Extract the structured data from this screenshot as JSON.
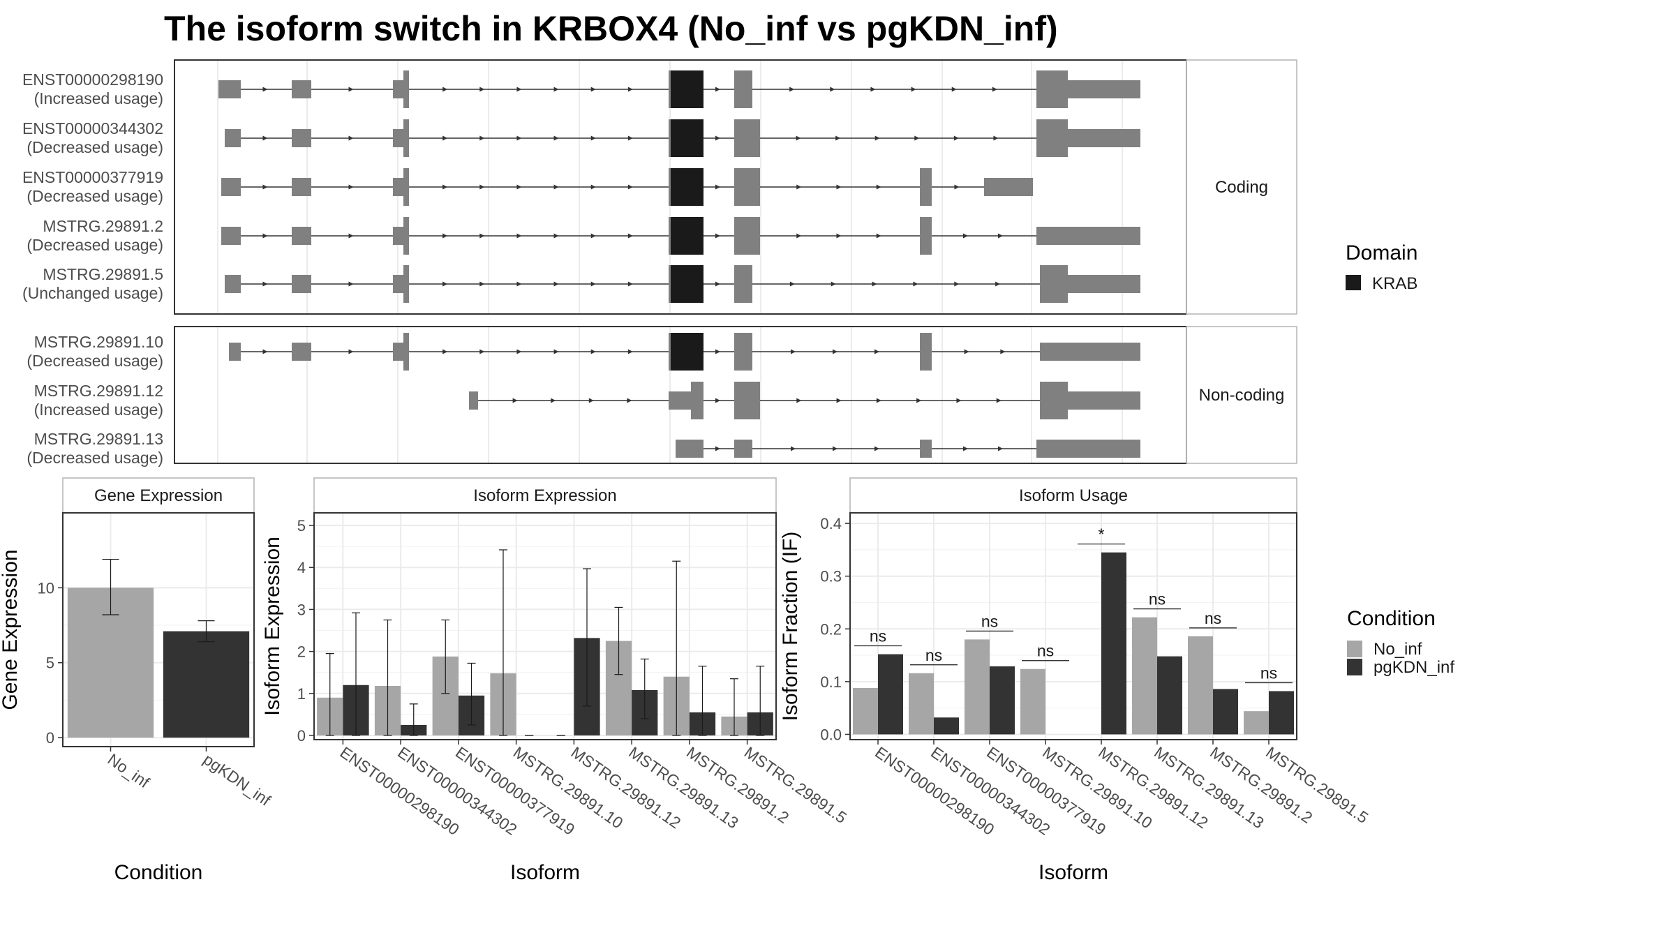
{
  "title": "The isoform switch in KRBOX4 (No_inf vs pgKDN_inf)",
  "colors": {
    "no_inf": "#A6A6A6",
    "pgkdn_inf": "#333333",
    "exon": "#808080",
    "krab": "#1A1A1A",
    "grid": "#EBEBEB",
    "strip_border": "#B3B3B3",
    "panel_border": "#333333"
  },
  "structure": {
    "coding_strip": "Coding",
    "noncoding_strip": "Non-coding",
    "legend_title": "Domain",
    "legend_item": "KRAB",
    "coding": [
      {
        "id": "ENST00000298190",
        "usage": "(Increased usage)"
      },
      {
        "id": "ENST00000344302",
        "usage": "(Decreased usage)"
      },
      {
        "id": "ENST00000377919",
        "usage": "(Decreased usage)"
      },
      {
        "id": "MSTRG.29891.2",
        "usage": "(Decreased usage)"
      },
      {
        "id": "MSTRG.29891.5",
        "usage": "(Unchanged usage)"
      }
    ],
    "noncoding": [
      {
        "id": "MSTRG.29891.10",
        "usage": "(Decreased usage)"
      },
      {
        "id": "MSTRG.29891.12",
        "usage": "(Increased usage)"
      },
      {
        "id": "MSTRG.29891.13",
        "usage": "(Decreased usage)"
      }
    ]
  },
  "chart_data": [
    {
      "type": "bar",
      "strip": "Gene Expression",
      "xlabel": "Condition",
      "ylabel": "Gene Expression",
      "categories": [
        "No_inf",
        "pgKDN_inf"
      ],
      "values": [
        10.0,
        7.1
      ],
      "error_low": [
        8.2,
        6.4
      ],
      "error_high": [
        11.9,
        7.8
      ],
      "ylim": [
        -0.6,
        15.0
      ],
      "yticks": [
        0,
        5,
        10
      ]
    },
    {
      "type": "bar",
      "strip": "Isoform Expression",
      "xlabel": "Isoform",
      "ylabel": "Isoform Expression",
      "categories": [
        "ENST00000298190",
        "ENST00000344302",
        "ENST00000377919",
        "MSTRG.29891.10",
        "MSTRG.29891.12",
        "MSTRG.29891.13",
        "MSTRG.29891.2",
        "MSTRG.29891.5"
      ],
      "series": [
        {
          "name": "No_inf",
          "values": [
            0.9,
            1.18,
            1.88,
            1.48,
            0.0,
            2.25,
            1.4,
            0.45
          ],
          "error_low": [
            0.0,
            0.0,
            1.0,
            0.0,
            0.0,
            1.45,
            0.0,
            0.0
          ],
          "error_high": [
            1.95,
            2.75,
            2.75,
            4.42,
            0.0,
            3.05,
            4.15,
            1.35
          ]
        },
        {
          "name": "pgKDN_inf",
          "values": [
            1.2,
            0.25,
            0.95,
            0.0,
            2.32,
            1.08,
            0.55,
            0.55
          ],
          "error_low": [
            0.0,
            0.0,
            0.25,
            0.0,
            0.7,
            0.4,
            0.0,
            0.0
          ],
          "error_high": [
            2.92,
            0.75,
            1.72,
            0.0,
            3.97,
            1.82,
            1.65,
            1.65
          ]
        }
      ],
      "ylim": [
        -0.1,
        5.3
      ],
      "yticks": [
        0,
        1,
        2,
        3,
        4,
        5
      ]
    },
    {
      "type": "bar",
      "strip": "Isoform Usage",
      "xlabel": "Isoform",
      "ylabel": "Isoform Fraction (IF)",
      "categories": [
        "ENST00000298190",
        "ENST00000344302",
        "ENST00000377919",
        "MSTRG.29891.10",
        "MSTRG.29891.12",
        "MSTRG.29891.13",
        "MSTRG.29891.2",
        "MSTRG.29891.5"
      ],
      "series": [
        {
          "name": "No_inf",
          "values": [
            0.088,
            0.116,
            0.18,
            0.124,
            0.0,
            0.222,
            0.186,
            0.044
          ]
        },
        {
          "name": "pgKDN_inf",
          "values": [
            0.152,
            0.032,
            0.129,
            0.0,
            0.345,
            0.148,
            0.086,
            0.082
          ]
        }
      ],
      "significance": [
        "ns",
        "ns",
        "ns",
        "ns",
        "*",
        "ns",
        "ns",
        "ns"
      ],
      "ylim": [
        -0.01,
        0.42
      ],
      "yticks": [
        0.0,
        0.1,
        0.2,
        0.3,
        0.4
      ],
      "yticklabels": [
        "0.0",
        "0.1",
        "0.2",
        "0.3",
        "0.4"
      ]
    }
  ],
  "legend_condition": {
    "title": "Condition",
    "items": [
      "No_inf",
      "pgKDN_inf"
    ]
  }
}
